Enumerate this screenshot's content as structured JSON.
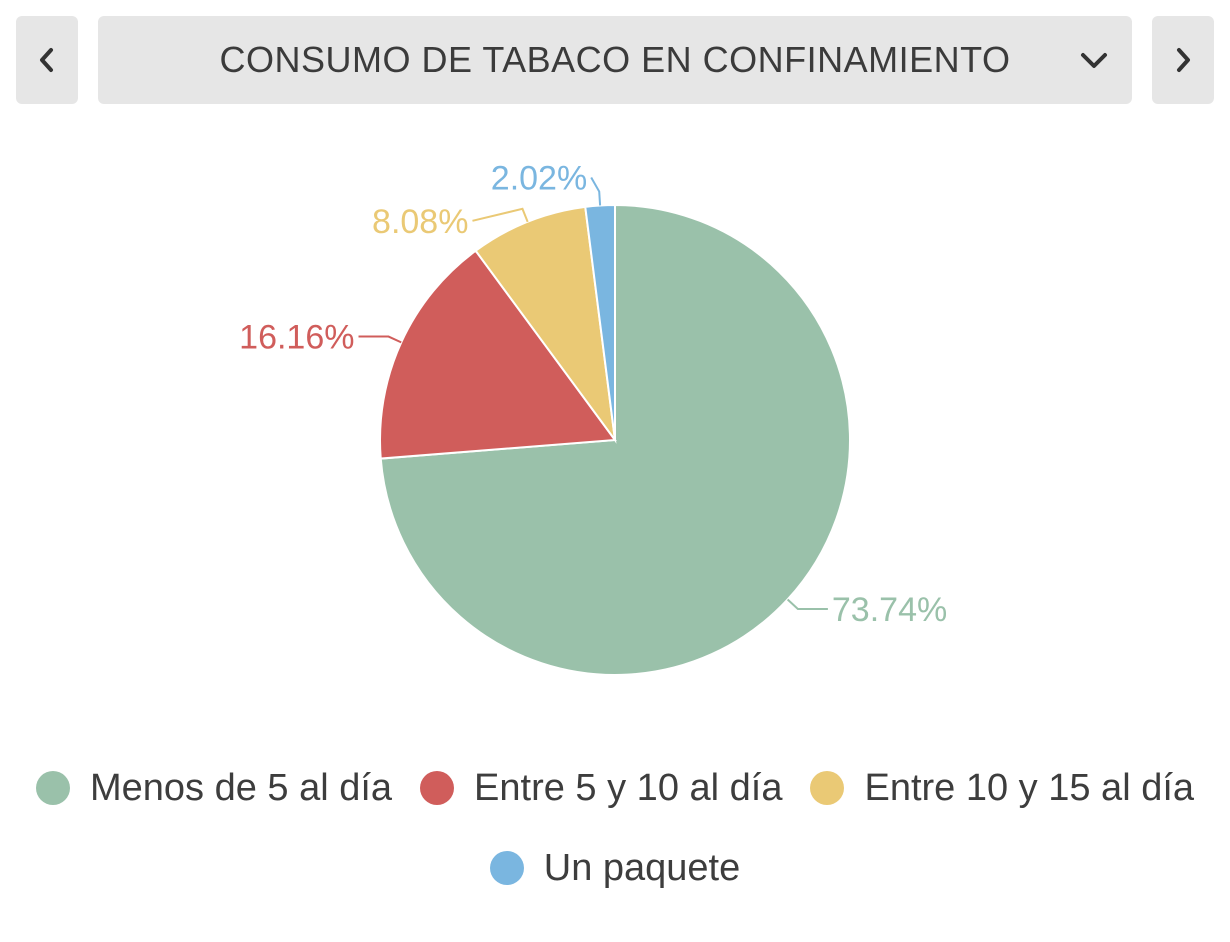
{
  "header": {
    "title": "CONSUMO DE TABACO EN CONFINAMIENTO",
    "prev_icon": "chevron-left-icon",
    "next_icon": "chevron-right-icon",
    "dropdown_icon": "chevron-down-icon"
  },
  "chart_data": {
    "type": "pie",
    "title": "CONSUMO DE TABACO EN CONFINAMIENTO",
    "categories": [
      "Menos de 5 al día",
      "Entre 5 y 10 al día",
      "Entre 10 y 15 al día",
      "Un paquete"
    ],
    "values": [
      73.74,
      16.16,
      8.08,
      2.02
    ],
    "labels": [
      "73.74%",
      "16.16%",
      "8.08%",
      "2.02%"
    ],
    "colors": [
      "#9ac1aa",
      "#d05d5b",
      "#eac975",
      "#7ab6e0"
    ],
    "legend": "bottom",
    "start": "12 o'clock",
    "direction": "clockwise"
  }
}
